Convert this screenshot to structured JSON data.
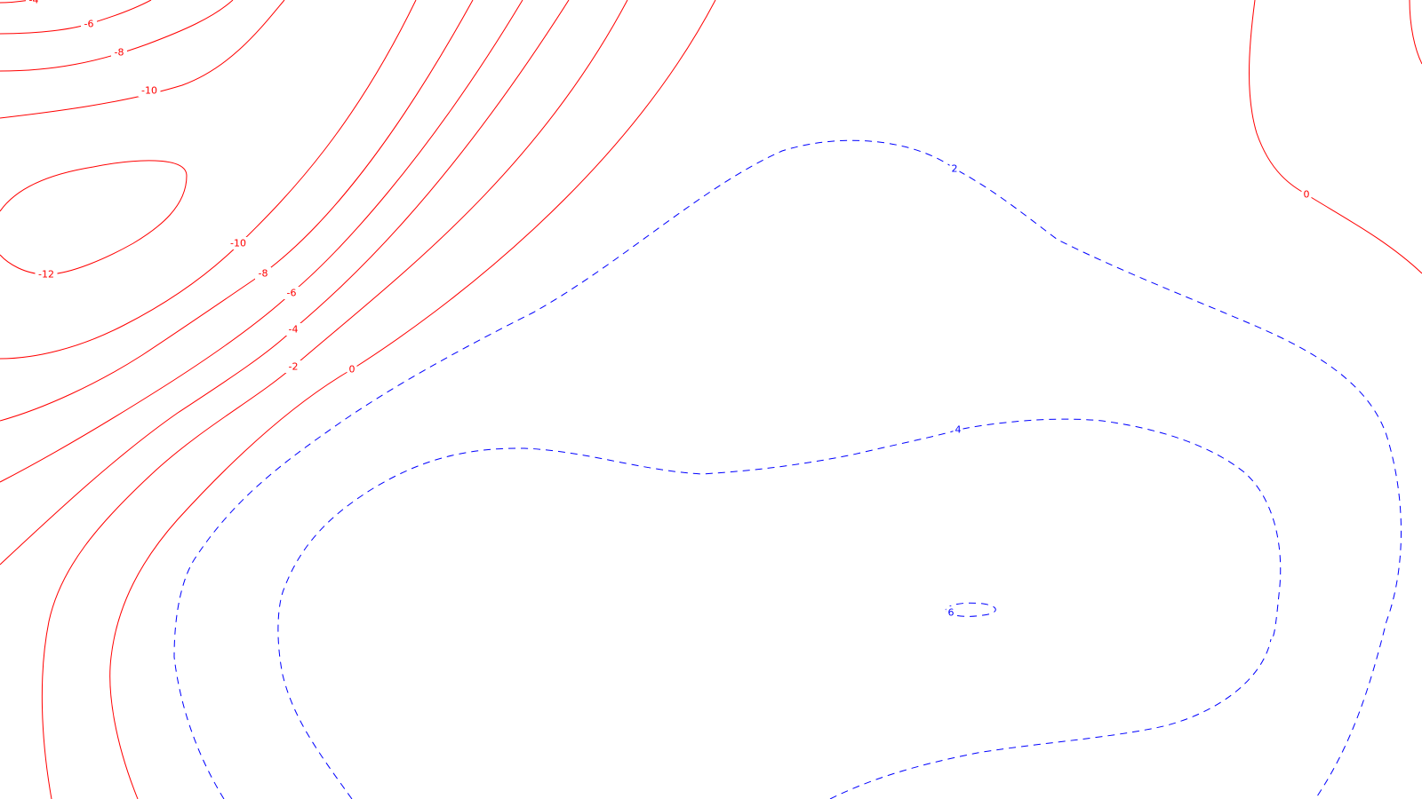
{
  "chart_data": {
    "type": "contour",
    "title": "",
    "xlabel": "",
    "ylabel": "",
    "grid": false,
    "legend": "none",
    "colors": {
      "positive": "#0000ff",
      "negative": "#ff0000",
      "zero": "#ff0000"
    },
    "line_styles": {
      "positive": "dashed",
      "negative": "solid",
      "zero": "solid"
    },
    "levels": [
      -12,
      -10,
      -8,
      -6,
      -4,
      -2,
      0,
      2,
      4,
      6
    ],
    "contours": [
      {
        "level": -12,
        "label": "-12"
      },
      {
        "level": -10,
        "label": "-10"
      },
      {
        "level": -10,
        "label": "-10"
      },
      {
        "level": -8,
        "label": "-8"
      },
      {
        "level": -8,
        "label": "-8"
      },
      {
        "level": -6,
        "label": "-6"
      },
      {
        "level": -6,
        "label": "-6"
      },
      {
        "level": -4,
        "label": "-4"
      },
      {
        "level": -4,
        "label": "-4"
      },
      {
        "level": -2,
        "label": "-2"
      },
      {
        "level": 0,
        "label": "0"
      },
      {
        "level": 0,
        "label": "0"
      },
      {
        "level": 2,
        "label": "2"
      },
      {
        "level": 4,
        "label": "4"
      },
      {
        "level": 6,
        "label": "6"
      }
    ]
  }
}
